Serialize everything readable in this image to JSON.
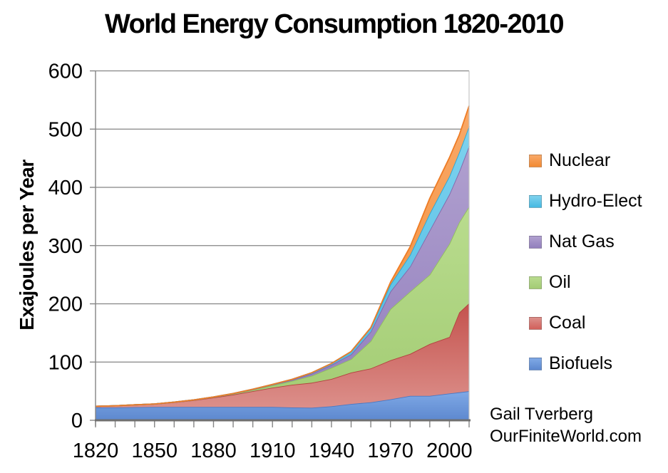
{
  "title": "World Energy Consumption 1820-2010",
  "y_axis": {
    "label": "Exajoules per Year",
    "ticks": [
      600,
      500,
      400,
      300,
      200,
      100,
      0
    ],
    "max": 600
  },
  "x_axis": {
    "labels": [
      "1820",
      "1850",
      "1880",
      "1910",
      "1940",
      "1970",
      "2000"
    ],
    "label_years": [
      1820,
      1850,
      1880,
      1910,
      1940,
      1970,
      2000
    ],
    "tick_interval_years": 10,
    "range": [
      1820,
      2010
    ]
  },
  "legend": [
    {
      "label": "Nuclear",
      "color": "#f28a33",
      "color2": "#f9a968"
    },
    {
      "label": "Hydro-Elect",
      "color": "#45b9e2",
      "color2": "#7fd2ee"
    },
    {
      "label": "Nat Gas",
      "color": "#927fbd",
      "color2": "#b0a0cf"
    },
    {
      "label": "Oil",
      "color": "#a3cc74",
      "color2": "#b9dc8e"
    },
    {
      "label": "Coal",
      "color": "#d2605b",
      "color2": "#dc8f8a"
    },
    {
      "label": "Biofuels",
      "color": "#5d88cf",
      "color2": "#7fa9e6"
    }
  ],
  "attribution": {
    "line1": "Gail Tverberg",
    "line2": "OurFiniteWorld.com"
  },
  "colors": {
    "gridline": "#848484",
    "x_axis_line": "#6f6f6f",
    "y_axis_line": "#848484",
    "plot_right_border": "#c6c6c6",
    "text": "#000000"
  },
  "chart_data": {
    "type": "area",
    "stacked": true,
    "title": "World Energy Consumption 1820-2010",
    "ylabel": "Exajoules per Year",
    "ylim": [
      0,
      600
    ],
    "xlim": [
      1820,
      2010
    ],
    "grid": "horizontal",
    "legend_position": "right",
    "x": [
      1820,
      1830,
      1840,
      1850,
      1860,
      1870,
      1880,
      1890,
      1900,
      1910,
      1920,
      1930,
      1940,
      1950,
      1960,
      1970,
      1980,
      1990,
      2000,
      2005,
      2010
    ],
    "series": [
      {
        "name": "Biofuels",
        "top": "#7fa9e6",
        "bottom": "#5d88cf",
        "edge": "#4a77c2",
        "values": [
          22,
          22,
          22.5,
          23,
          23,
          23,
          23,
          23,
          23,
          23,
          22,
          21.5,
          24,
          28,
          31,
          36,
          42,
          42,
          46,
          48,
          50
        ]
      },
      {
        "name": "Coal",
        "top": "#c4524d",
        "bottom": "#dc8f8a",
        "edge": "#b2423e",
        "values": [
          2,
          3,
          4,
          5,
          8,
          11.5,
          16,
          21,
          27,
          33,
          39,
          43,
          47,
          54,
          58,
          67,
          72,
          89,
          97,
          137,
          151
        ]
      },
      {
        "name": "Oil",
        "top": "#b9dc8e",
        "bottom": "#a3cc74",
        "edge": "#92bd5e",
        "values": [
          0,
          0,
          0,
          0,
          0.2,
          0.4,
          0.8,
          1.5,
          2.3,
          4,
          6.5,
          12,
          19,
          23,
          47,
          88,
          107,
          119,
          160,
          155,
          166
        ]
      },
      {
        "name": "Nat Gas",
        "top": "#b0a0cf",
        "bottom": "#927fbd",
        "edge": "#8168ab",
        "values": [
          0,
          0,
          0,
          0,
          0,
          0.1,
          0.2,
          0.4,
          0.7,
          1.2,
          1.8,
          3.5,
          5,
          8,
          16,
          30,
          43,
          76,
          85,
          87,
          104
        ]
      },
      {
        "name": "Hydro-Elect",
        "top": "#7fd2ee",
        "bottom": "#45b9e2",
        "edge": "#2ba6d2",
        "values": [
          0,
          0,
          0,
          0,
          0,
          0,
          0,
          0.1,
          0.3,
          0.5,
          1,
          1.7,
          2.5,
          5,
          7,
          12,
          20,
          29,
          31,
          33,
          34
        ]
      },
      {
        "name": "Nuclear",
        "top": "#f9a968",
        "bottom": "#f28a33",
        "edge": "#ee7c25",
        "values": [
          0,
          0,
          0,
          0,
          0,
          0,
          0,
          0,
          0,
          0,
          0,
          0,
          0,
          0,
          0,
          4,
          14,
          26,
          32,
          30,
          35
        ]
      }
    ]
  }
}
